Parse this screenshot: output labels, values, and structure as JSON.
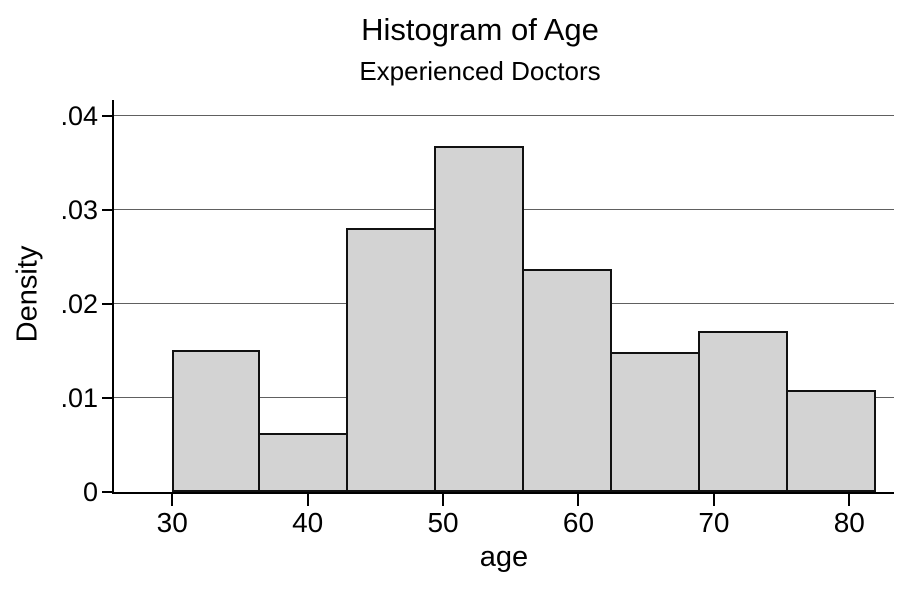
{
  "page": {
    "background": "#ffffff"
  },
  "chart_data": {
    "type": "bar",
    "chart_kind": "histogram",
    "title": "Histogram of Age",
    "subtitle": "Experienced Doctors",
    "xlabel": "age",
    "ylabel": "Density",
    "x_ticks": [
      30,
      40,
      50,
      60,
      70,
      80
    ],
    "y_ticks": [
      0,
      0.01,
      0.02,
      0.03,
      0.04
    ],
    "y_tick_labels": [
      "0",
      ".01",
      ".02",
      ".03",
      ".04"
    ],
    "xlim": [
      25.7,
      83.3
    ],
    "ylim": [
      0,
      0.0417
    ],
    "grid": true,
    "legend_position": "none",
    "bin_width": 6.5,
    "bins": [
      {
        "start": 30.0,
        "end": 36.5,
        "density": 0.0151
      },
      {
        "start": 36.5,
        "end": 43.0,
        "density": 0.0063
      },
      {
        "start": 43.0,
        "end": 49.5,
        "density": 0.0281
      },
      {
        "start": 49.5,
        "end": 56.0,
        "density": 0.0368
      },
      {
        "start": 56.0,
        "end": 62.5,
        "density": 0.0237
      },
      {
        "start": 62.5,
        "end": 69.0,
        "density": 0.0149
      },
      {
        "start": 69.0,
        "end": 75.5,
        "density": 0.0171
      },
      {
        "start": 75.5,
        "end": 82.0,
        "density": 0.0108
      }
    ],
    "colors": {
      "bar_fill": "#d3d3d3",
      "bar_border": "#111111",
      "gridline": "#606060",
      "axis": "#000000",
      "text": "#000000"
    }
  }
}
